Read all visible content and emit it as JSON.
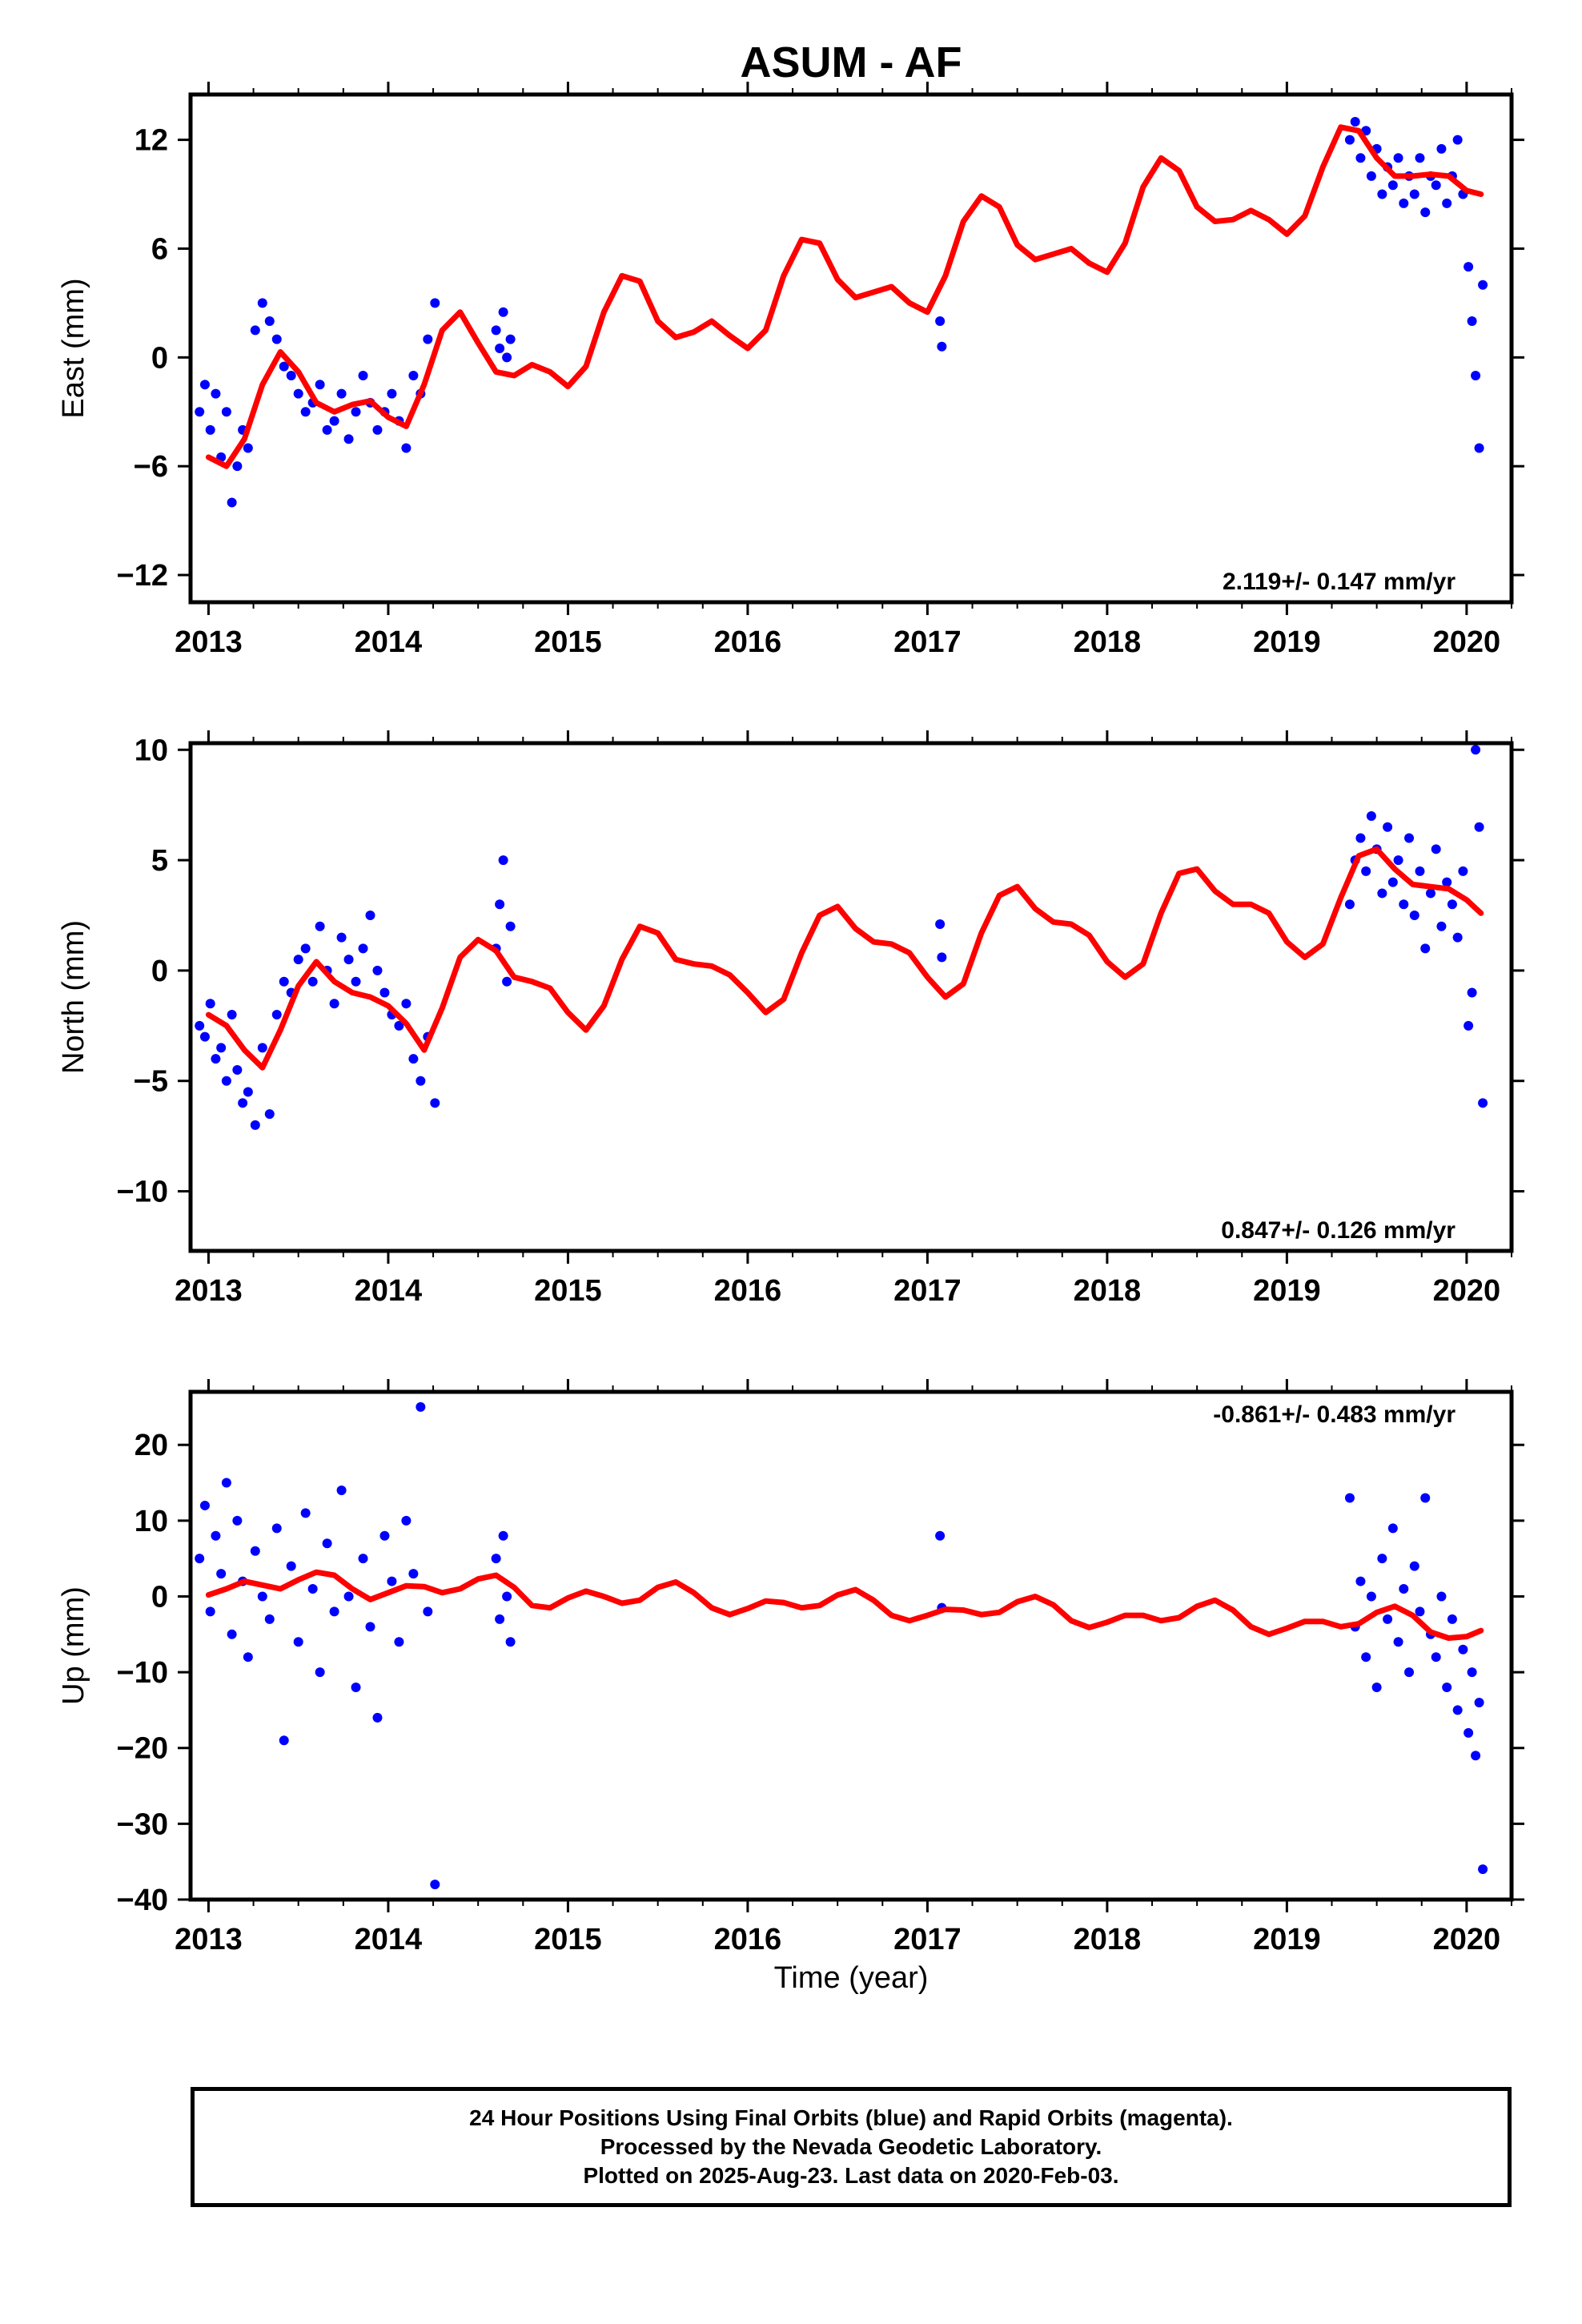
{
  "page": {
    "title": "ASUM - AF",
    "footer": [
      "24 Hour Positions Using Final Orbits (blue) and Rapid Orbits (magenta).",
      "Processed by the Nevada Geodetic Laboratory.",
      "Plotted on 2025-Aug-23. Last data on 2020-Feb-03."
    ]
  },
  "colors": {
    "points": "#0000ff",
    "fit": "#ff0000",
    "axis": "#000000"
  },
  "chart_data": [
    {
      "type": "scatter",
      "title": "ASUM - AF",
      "ylabel": "East (mm)",
      "xlabel": "",
      "xlim": [
        2012.9,
        2020.25
      ],
      "ylim": [
        -13.5,
        14.5
      ],
      "xticks": [
        2013,
        2014,
        2015,
        2016,
        2017,
        2018,
        2019,
        2020
      ],
      "xtick_labels": [
        "2013",
        "2014",
        "2015",
        "2016",
        "2017",
        "2018",
        "2019",
        "2020"
      ],
      "yticks": [
        -12,
        -6,
        0,
        6,
        12
      ],
      "ytick_labels": [
        "−12",
        "−6",
        "0",
        "6",
        "12"
      ],
      "rate_label": "2.119+/- 0.147 mm/yr",
      "rate_label_position": "bottom-right",
      "series": [
        {
          "name": "",
          "role": "points",
          "x": [
            2012.95,
            2012.98,
            2013.01,
            2013.04,
            2013.07,
            2013.1,
            2013.13,
            2013.16,
            2013.19,
            2013.22,
            2013.26,
            2013.3,
            2013.34,
            2013.38,
            2013.42,
            2013.46,
            2013.5,
            2013.54,
            2013.58,
            2013.62,
            2013.66,
            2013.7,
            2013.74,
            2013.78,
            2013.82,
            2013.86,
            2013.9,
            2013.94,
            2013.98,
            2014.02,
            2014.06,
            2014.1,
            2014.14,
            2014.18,
            2014.22,
            2014.26,
            2014.6,
            2014.62,
            2014.64,
            2014.66,
            2014.68,
            2017.07,
            2017.08,
            2019.35,
            2019.38,
            2019.41,
            2019.44,
            2019.47,
            2019.5,
            2019.53,
            2019.56,
            2019.59,
            2019.62,
            2019.65,
            2019.68,
            2019.71,
            2019.74,
            2019.77,
            2019.8,
            2019.83,
            2019.86,
            2019.89,
            2019.92,
            2019.95,
            2019.98,
            2020.01,
            2020.03,
            2020.05,
            2020.07,
            2020.09
          ],
          "y": [
            -3.0,
            -1.5,
            -4.0,
            -2.0,
            -5.5,
            -3.0,
            -8.0,
            -6.0,
            -4.0,
            -5.0,
            1.5,
            3.0,
            2.0,
            1.0,
            -0.5,
            -1.0,
            -2.0,
            -3.0,
            -2.5,
            -1.5,
            -4.0,
            -3.5,
            -2.0,
            -4.5,
            -3.0,
            -1.0,
            -2.5,
            -4.0,
            -3.0,
            -2.0,
            -3.5,
            -5.0,
            -1.0,
            -2.0,
            1.0,
            3.0,
            1.5,
            0.5,
            2.5,
            0.0,
            1.0,
            2.0,
            0.6,
            12.0,
            13.0,
            11.0,
            12.5,
            10.0,
            11.5,
            9.0,
            10.5,
            9.5,
            11.0,
            8.5,
            10.0,
            9.0,
            11.0,
            8.0,
            10.0,
            9.5,
            11.5,
            8.5,
            10.0,
            12.0,
            9.0,
            5.0,
            2.0,
            -1.0,
            -5.0,
            4.0
          ]
        },
        {
          "name": "",
          "role": "fit",
          "x": [
            2013.0,
            2013.1,
            2013.2,
            2013.3,
            2013.4,
            2013.5,
            2013.6,
            2013.7,
            2013.8,
            2013.9,
            2014.0,
            2014.1,
            2014.2,
            2014.3,
            2014.4,
            2014.5,
            2014.6,
            2014.7,
            2014.8,
            2014.9,
            2015.0,
            2015.1,
            2015.2,
            2015.3,
            2015.4,
            2015.5,
            2015.6,
            2015.7,
            2015.8,
            2015.9,
            2016.0,
            2016.1,
            2016.2,
            2016.3,
            2016.4,
            2016.5,
            2016.6,
            2016.7,
            2016.8,
            2016.9,
            2017.0,
            2017.1,
            2017.2,
            2017.3,
            2017.4,
            2017.5,
            2017.6,
            2017.7,
            2017.8,
            2017.9,
            2018.0,
            2018.1,
            2018.2,
            2018.3,
            2018.4,
            2018.5,
            2018.6,
            2018.7,
            2018.8,
            2018.9,
            2019.0,
            2019.1,
            2019.2,
            2019.3,
            2019.4,
            2019.5,
            2019.6,
            2019.7,
            2019.8,
            2019.9,
            2020.0,
            2020.08
          ],
          "y": [
            -5.5,
            -6.0,
            -4.5,
            -1.5,
            0.3,
            -0.8,
            -2.5,
            -3.0,
            -2.6,
            -2.4,
            -3.3,
            -3.8,
            -1.5,
            1.5,
            2.5,
            0.8,
            -0.8,
            -1.0,
            -0.4,
            -0.8,
            -1.6,
            -0.5,
            2.5,
            4.5,
            4.2,
            2.0,
            1.1,
            1.4,
            2.0,
            1.2,
            0.5,
            1.5,
            4.5,
            6.5,
            6.3,
            4.3,
            3.3,
            3.6,
            3.9,
            3.0,
            2.5,
            4.5,
            7.5,
            8.9,
            8.3,
            6.2,
            5.4,
            5.7,
            6.0,
            5.2,
            4.7,
            6.3,
            9.4,
            11.0,
            10.3,
            8.3,
            7.5,
            7.6,
            8.1,
            7.6,
            6.8,
            7.8,
            10.5,
            12.7,
            12.5,
            11.0,
            10.0,
            10.0,
            10.1,
            10.0,
            9.2,
            9.0
          ]
        }
      ]
    },
    {
      "type": "scatter",
      "title": "",
      "ylabel": "North (mm)",
      "xlabel": "",
      "xlim": [
        2012.9,
        2020.25
      ],
      "ylim": [
        -12.7,
        10.3
      ],
      "xticks": [
        2013,
        2014,
        2015,
        2016,
        2017,
        2018,
        2019,
        2020
      ],
      "xtick_labels": [
        "2013",
        "2014",
        "2015",
        "2016",
        "2017",
        "2018",
        "2019",
        "2020"
      ],
      "yticks": [
        -10,
        -5,
        0,
        5,
        10
      ],
      "ytick_labels": [
        "−10",
        "−5",
        "0",
        "5",
        "10"
      ],
      "rate_label": "0.847+/- 0.126 mm/yr",
      "rate_label_position": "bottom-right",
      "series": [
        {
          "name": "",
          "role": "points",
          "x": [
            2012.95,
            2012.98,
            2013.01,
            2013.04,
            2013.07,
            2013.1,
            2013.13,
            2013.16,
            2013.19,
            2013.22,
            2013.26,
            2013.3,
            2013.34,
            2013.38,
            2013.42,
            2013.46,
            2013.5,
            2013.54,
            2013.58,
            2013.62,
            2013.66,
            2013.7,
            2013.74,
            2013.78,
            2013.82,
            2013.86,
            2013.9,
            2013.94,
            2013.98,
            2014.02,
            2014.06,
            2014.1,
            2014.14,
            2014.18,
            2014.22,
            2014.26,
            2014.6,
            2014.62,
            2014.64,
            2014.66,
            2014.68,
            2017.07,
            2017.08,
            2019.35,
            2019.38,
            2019.41,
            2019.44,
            2019.47,
            2019.5,
            2019.53,
            2019.56,
            2019.59,
            2019.62,
            2019.65,
            2019.68,
            2019.71,
            2019.74,
            2019.77,
            2019.8,
            2019.83,
            2019.86,
            2019.89,
            2019.92,
            2019.95,
            2019.98,
            2020.01,
            2020.03,
            2020.05,
            2020.07,
            2020.09
          ],
          "y": [
            -2.5,
            -3.0,
            -1.5,
            -4.0,
            -3.5,
            -5.0,
            -2.0,
            -4.5,
            -6.0,
            -5.5,
            -7.0,
            -3.5,
            -6.5,
            -2.0,
            -0.5,
            -1.0,
            0.5,
            1.0,
            -0.5,
            2.0,
            0.0,
            -1.5,
            1.5,
            0.5,
            -0.5,
            1.0,
            2.5,
            0.0,
            -1.0,
            -2.0,
            -2.5,
            -1.5,
            -4.0,
            -5.0,
            -3.0,
            -6.0,
            1.0,
            3.0,
            5.0,
            -0.5,
            2.0,
            2.1,
            0.6,
            3.0,
            5.0,
            6.0,
            4.5,
            7.0,
            5.5,
            3.5,
            6.5,
            4.0,
            5.0,
            3.0,
            6.0,
            2.5,
            4.5,
            1.0,
            3.5,
            5.5,
            2.0,
            4.0,
            3.0,
            1.5,
            4.5,
            -2.5,
            -1.0,
            10.0,
            6.5,
            -6.0
          ]
        },
        {
          "name": "",
          "role": "fit",
          "x": [
            2013.0,
            2013.1,
            2013.2,
            2013.3,
            2013.4,
            2013.5,
            2013.6,
            2013.7,
            2013.8,
            2013.9,
            2014.0,
            2014.1,
            2014.2,
            2014.3,
            2014.4,
            2014.5,
            2014.6,
            2014.7,
            2014.8,
            2014.9,
            2015.0,
            2015.1,
            2015.2,
            2015.3,
            2015.4,
            2015.5,
            2015.6,
            2015.7,
            2015.8,
            2015.9,
            2016.0,
            2016.1,
            2016.2,
            2016.3,
            2016.4,
            2016.5,
            2016.6,
            2016.7,
            2016.8,
            2016.9,
            2017.0,
            2017.1,
            2017.2,
            2017.3,
            2017.4,
            2017.5,
            2017.6,
            2017.7,
            2017.8,
            2017.9,
            2018.0,
            2018.1,
            2018.2,
            2018.3,
            2018.4,
            2018.5,
            2018.6,
            2018.7,
            2018.8,
            2018.9,
            2019.0,
            2019.1,
            2019.2,
            2019.3,
            2019.4,
            2019.5,
            2019.6,
            2019.7,
            2019.8,
            2019.9,
            2020.0,
            2020.08
          ],
          "y": [
            -2.0,
            -2.5,
            -3.6,
            -4.4,
            -2.7,
            -0.7,
            0.4,
            -0.5,
            -1.0,
            -1.2,
            -1.6,
            -2.4,
            -3.6,
            -1.7,
            0.6,
            1.4,
            0.9,
            -0.3,
            -0.5,
            -0.8,
            -1.9,
            -2.7,
            -1.6,
            0.5,
            2.0,
            1.7,
            0.5,
            0.3,
            0.2,
            -0.2,
            -1.0,
            -1.9,
            -1.3,
            0.8,
            2.5,
            2.9,
            1.9,
            1.3,
            1.2,
            0.8,
            -0.3,
            -1.2,
            -0.6,
            1.7,
            3.4,
            3.8,
            2.8,
            2.2,
            2.1,
            1.6,
            0.4,
            -0.3,
            0.3,
            2.6,
            4.4,
            4.6,
            3.6,
            3.0,
            3.0,
            2.6,
            1.3,
            0.6,
            1.2,
            3.3,
            5.2,
            5.5,
            4.6,
            3.9,
            3.8,
            3.7,
            3.2,
            2.6
          ]
        }
      ]
    },
    {
      "type": "scatter",
      "title": "",
      "ylabel": "Up (mm)",
      "xlabel": "Time (year)",
      "xlim": [
        2012.9,
        2020.25
      ],
      "ylim": [
        -40,
        27
      ],
      "xticks": [
        2013,
        2014,
        2015,
        2016,
        2017,
        2018,
        2019,
        2020
      ],
      "xtick_labels": [
        "2013",
        "2014",
        "2015",
        "2016",
        "2017",
        "2018",
        "2019",
        "2020"
      ],
      "yticks": [
        -40,
        -30,
        -20,
        -10,
        0,
        10,
        20
      ],
      "ytick_labels": [
        "−40",
        "−30",
        "−20",
        "−10",
        "0",
        "10",
        "20"
      ],
      "rate_label": "-0.861+/- 0.483 mm/yr",
      "rate_label_position": "top-right",
      "series": [
        {
          "name": "",
          "role": "points",
          "x": [
            2012.95,
            2012.98,
            2013.01,
            2013.04,
            2013.07,
            2013.1,
            2013.13,
            2013.16,
            2013.19,
            2013.22,
            2013.26,
            2013.3,
            2013.34,
            2013.38,
            2013.42,
            2013.46,
            2013.5,
            2013.54,
            2013.58,
            2013.62,
            2013.66,
            2013.7,
            2013.74,
            2013.78,
            2013.82,
            2013.86,
            2013.9,
            2013.94,
            2013.98,
            2014.02,
            2014.06,
            2014.1,
            2014.14,
            2014.18,
            2014.22,
            2014.26,
            2014.6,
            2014.62,
            2014.64,
            2014.66,
            2014.68,
            2017.07,
            2017.08,
            2019.35,
            2019.38,
            2019.41,
            2019.44,
            2019.47,
            2019.5,
            2019.53,
            2019.56,
            2019.59,
            2019.62,
            2019.65,
            2019.68,
            2019.71,
            2019.74,
            2019.77,
            2019.8,
            2019.83,
            2019.86,
            2019.89,
            2019.92,
            2019.95,
            2019.98,
            2020.01,
            2020.03,
            2020.05,
            2020.07,
            2020.09
          ],
          "y": [
            5.0,
            12.0,
            -2.0,
            8.0,
            3.0,
            15.0,
            -5.0,
            10.0,
            2.0,
            -8.0,
            6.0,
            0.0,
            -3.0,
            9.0,
            -19.0,
            4.0,
            -6.0,
            11.0,
            1.0,
            -10.0,
            7.0,
            -2.0,
            14.0,
            0.0,
            -12.0,
            5.0,
            -4.0,
            -16.0,
            8.0,
            2.0,
            -6.0,
            10.0,
            3.0,
            25.0,
            -2.0,
            -38.0,
            5.0,
            -3.0,
            8.0,
            0.0,
            -6.0,
            8.0,
            -1.5,
            13.0,
            -4.0,
            2.0,
            -8.0,
            0.0,
            -12.0,
            5.0,
            -3.0,
            9.0,
            -6.0,
            1.0,
            -10.0,
            4.0,
            -2.0,
            13.0,
            -5.0,
            -8.0,
            0.0,
            -12.0,
            -3.0,
            -15.0,
            -7.0,
            -18.0,
            -10.0,
            -21.0,
            -14.0,
            -36.0
          ]
        },
        {
          "name": "",
          "role": "fit",
          "x": [
            2013.0,
            2013.1,
            2013.2,
            2013.3,
            2013.4,
            2013.5,
            2013.6,
            2013.7,
            2013.8,
            2013.9,
            2014.0,
            2014.1,
            2014.2,
            2014.3,
            2014.4,
            2014.5,
            2014.6,
            2014.7,
            2014.8,
            2014.9,
            2015.0,
            2015.1,
            2015.2,
            2015.3,
            2015.4,
            2015.5,
            2015.6,
            2015.7,
            2015.8,
            2015.9,
            2016.0,
            2016.1,
            2016.2,
            2016.3,
            2016.4,
            2016.5,
            2016.6,
            2016.7,
            2016.8,
            2016.9,
            2017.0,
            2017.1,
            2017.2,
            2017.3,
            2017.4,
            2017.5,
            2017.6,
            2017.7,
            2017.8,
            2017.9,
            2018.0,
            2018.1,
            2018.2,
            2018.3,
            2018.4,
            2018.5,
            2018.6,
            2018.7,
            2018.8,
            2018.9,
            2019.0,
            2019.1,
            2019.2,
            2019.3,
            2019.4,
            2019.5,
            2019.6,
            2019.7,
            2019.8,
            2019.9,
            2020.0,
            2020.08
          ],
          "y": [
            0.2,
            1.0,
            2.0,
            1.5,
            1.0,
            2.2,
            3.2,
            2.8,
            1.0,
            -0.4,
            0.5,
            1.4,
            1.3,
            0.5,
            1.0,
            2.3,
            2.8,
            1.2,
            -1.2,
            -1.5,
            -0.2,
            0.7,
            0.0,
            -0.9,
            -0.5,
            1.2,
            1.9,
            0.5,
            -1.5,
            -2.4,
            -1.6,
            -0.6,
            -0.8,
            -1.5,
            -1.2,
            0.2,
            0.9,
            -0.5,
            -2.5,
            -3.2,
            -2.5,
            -1.7,
            -1.8,
            -2.4,
            -2.1,
            -0.7,
            0.0,
            -1.1,
            -3.2,
            -4.1,
            -3.4,
            -2.5,
            -2.5,
            -3.2,
            -2.8,
            -1.3,
            -0.5,
            -1.8,
            -4.0,
            -5.0,
            -4.2,
            -3.3,
            -3.3,
            -4.0,
            -3.6,
            -2.1,
            -1.3,
            -2.5,
            -4.7,
            -5.5,
            -5.3,
            -4.5
          ]
        }
      ]
    }
  ]
}
